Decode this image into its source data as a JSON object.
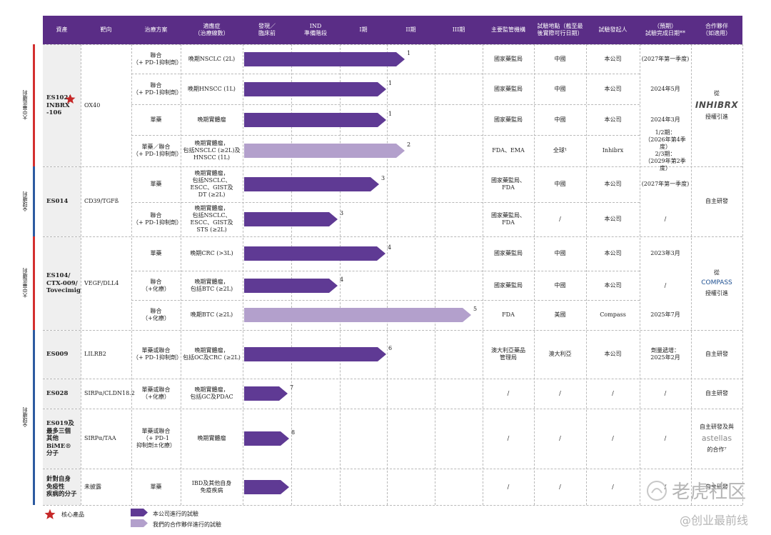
{
  "headers": [
    "資產",
    "靶向",
    "治療方案",
    "適應症\n（治療線數）",
    "發現／\n臨床前",
    "IND\n準備階段",
    "I期",
    "II期",
    "III期",
    "主要監管機構",
    "試驗地點（截至最\n後實際可行日期）",
    "試驗發起人",
    "（預期）\n試驗完成日期**",
    "合作夥伴\n（如適用）"
  ],
  "side_labels": [
    "大中華區權利",
    "全球權利",
    "大中華區權利",
    "全球權利"
  ],
  "assets": [
    {
      "name": "ES102/\nINBRX\n-106",
      "target": "OX40",
      "core": true
    },
    {
      "name": "ES014",
      "target": "CD39/TGFß"
    },
    {
      "name": "ES104/\nCTX-009/\nTovecimig",
      "target": "VEGF/DLL4"
    },
    {
      "name": "ES009",
      "target": "LILRB2"
    },
    {
      "name": "ES028",
      "target": "SIRPα/CLDN18.2"
    },
    {
      "name": "ES019及\n最多三個\n其他BiME®\n分子",
      "target": "SIRPα/TAA"
    },
    {
      "name": "針對自身\n免疫性\n疾病的分子",
      "target": "未披露"
    }
  ],
  "rows": [
    {
      "regimen": "聯合\n（+ PD-1抑制劑）",
      "indication": "晚期NSCLC (2L)",
      "note": "1",
      "regulator": "國家藥監局",
      "site": "中國",
      "sponsor": "本公司",
      "completion": "(2027年第一季度)"
    },
    {
      "regimen": "聯合\n（+ PD-1抑制劑）",
      "indication": "晚期HNSCC (1L)",
      "note": "1",
      "regulator": "國家藥監局",
      "site": "中國",
      "sponsor": "本公司",
      "completion": "2024年5月"
    },
    {
      "regimen": "單藥",
      "indication": "晚期實體瘤",
      "note": "1",
      "regulator": "國家藥監局",
      "site": "中國",
      "sponsor": "本公司",
      "completion": "2024年3月"
    },
    {
      "regimen": "單藥／聯合\n（+ PD-1抑制劑）",
      "indication": "晚期實體瘤，\n包括NSCLC (≥2L)及\nHNSCC (1L)",
      "note": "2",
      "regulator": "FDA、EMA",
      "site": "全球¹",
      "sponsor": "Inhibrx",
      "completion": "1/2期：\n（2026年第4季度）\n2/3期：\n（2029年第2季度）"
    },
    {
      "regimen": "單藥",
      "indication": "晚期實體瘤，\n包括NSCLC、\nESCC、GIST及\nDT (≥2L)",
      "note": "3",
      "regulator": "國家藥監局、\nFDA",
      "site": "中國",
      "sponsor": "本公司",
      "completion": "(2027年第一季度)"
    },
    {
      "regimen": "聯合\n（+ PD-1抑制劑）",
      "indication": "晚期實體瘤，\n包括NSCLC、\nESCC、GIST及\nSTS (≥2L)",
      "note": "3",
      "regulator": "國家藥監局、\nFDA",
      "site": "/",
      "sponsor": "本公司",
      "completion": "/"
    },
    {
      "regimen": "單藥",
      "indication": "晚期CRC (>3L)",
      "note": "4",
      "regulator": "國家藥監局",
      "site": "中國",
      "sponsor": "本公司",
      "completion": "2023年3月"
    },
    {
      "regimen": "聯合\n（+化療）",
      "indication": "晚期實體瘤，\n包括BTC (≥2L)",
      "note": "4",
      "regulator": "國家藥監局",
      "site": "中國",
      "sponsor": "本公司",
      "completion": "/"
    },
    {
      "regimen": "聯合\n（+化療）",
      "indication": "晚期BTC (≥2L)",
      "note": "5",
      "regulator": "FDA",
      "site": "美國",
      "sponsor": "Compass",
      "completion": "2025年7月"
    },
    {
      "regimen": "單藥或聯合\n（+ PD-1抑制劑）",
      "indication": "晚期實體瘤，\n包括OC及CRC (≥2L)",
      "note": "6",
      "regulator": "澳大利亞藥品\n管理局",
      "site": "澳大利亞",
      "sponsor": "本公司",
      "completion": "劑量遞增：\n2025年2月"
    },
    {
      "regimen": "單藥或聯合\n（+化療）",
      "indication": "晚期實體瘤，\n包括GC及PDAC",
      "note": "7",
      "regulator": "/",
      "site": "/",
      "sponsor": "/",
      "completion": "/"
    },
    {
      "regimen": "單藥或聯合\n（+ PD-1\n抑制劑±化療）",
      "indication": "晚期實體瘤",
      "note": "8",
      "regulator": "/",
      "site": "/",
      "sponsor": "/",
      "completion": "/"
    },
    {
      "regimen": "單藥",
      "indication": "IBD及其他自身\n免疫疾病",
      "note": "",
      "regulator": "/",
      "site": "/",
      "sponsor": "/",
      "completion": "/"
    }
  ],
  "partners": [
    {
      "line1": "從",
      "logo": "INHIBRX",
      "line2": "授權引進"
    },
    {
      "text": "自主研發"
    },
    {
      "line1": "從",
      "logo": "COMPASS",
      "line2": "授權引進"
    },
    {
      "text": "自主研發"
    },
    {
      "text": "自主研發"
    },
    {
      "line1": "自主研發及與",
      "logo": "astellas",
      "line2": "的合作⁷"
    },
    {
      "text": "自主研發"
    }
  ],
  "legend": {
    "core": "核心產品",
    "own": "本公司進行的試驗",
    "partner": "我們的合作夥伴進行的試驗"
  },
  "watermarks": [
    "老虎社区",
    "@创业最前线"
  ],
  "colors": {
    "header": "#5a2d86",
    "bar_own": "#5f3a94",
    "bar_partner": "#b3a0cc",
    "red": "#d32f2f",
    "blue": "#2c5aa0",
    "star": "#c62828"
  }
}
